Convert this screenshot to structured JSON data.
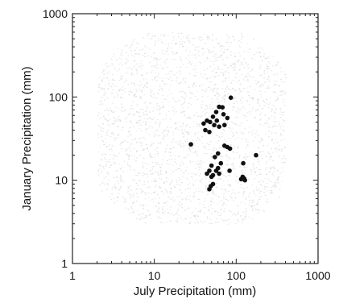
{
  "chart_data": {
    "type": "scatter",
    "title": "",
    "xlabel": "July Precipitation (mm)",
    "ylabel": "January Precipitation (mm)",
    "xscale": "log",
    "yscale": "log",
    "xlim": [
      1,
      1000
    ],
    "ylim": [
      1,
      1000
    ],
    "x_ticks": [
      1,
      10,
      100,
      1000
    ],
    "y_ticks": [
      1,
      10,
      100,
      1000
    ],
    "x_tick_labels": [
      "1",
      "10",
      "100",
      "1000"
    ],
    "y_tick_labels": [
      "1",
      "10",
      "100",
      "1000"
    ],
    "grid": false,
    "background_cloud": {
      "description_color": "#d9d9d9",
      "x_range": [
        2,
        400
      ],
      "y_range": [
        3,
        600
      ]
    },
    "series": [
      {
        "color": "#111111",
        "points": [
          [
            86,
            98
          ],
          [
            62,
            76
          ],
          [
            68,
            75
          ],
          [
            57,
            66
          ],
          [
            70,
            62
          ],
          [
            52,
            58
          ],
          [
            78,
            56
          ],
          [
            44,
            52
          ],
          [
            58,
            52
          ],
          [
            48,
            50
          ],
          [
            40,
            48
          ],
          [
            54,
            46
          ],
          [
            72,
            46
          ],
          [
            62,
            44
          ],
          [
            42,
            40
          ],
          [
            47,
            38
          ],
          [
            28,
            27
          ],
          [
            72,
            26
          ],
          [
            78,
            25
          ],
          [
            84,
            24
          ],
          [
            60,
            21
          ],
          [
            55,
            19
          ],
          [
            175,
            20
          ],
          [
            65,
            16
          ],
          [
            122,
            16
          ],
          [
            50,
            15
          ],
          [
            60,
            14
          ],
          [
            47,
            13
          ],
          [
            57,
            13
          ],
          [
            62,
            12
          ],
          [
            44,
            12
          ],
          [
            50,
            11
          ],
          [
            52,
            11.5
          ],
          [
            83,
            13
          ],
          [
            120,
            11
          ],
          [
            125,
            10.5
          ],
          [
            115,
            10.3
          ],
          [
            128,
            10
          ],
          [
            52,
            9
          ],
          [
            49,
            8.5
          ],
          [
            47,
            7.8
          ]
        ]
      }
    ]
  }
}
